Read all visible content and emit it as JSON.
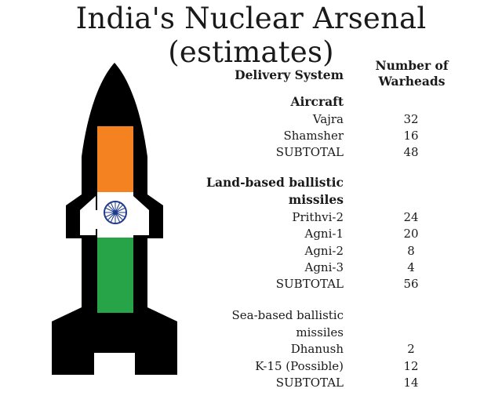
{
  "title": "India's Nuclear Arsenal (estimates)",
  "colors": {
    "rocket_outline": "#000000",
    "saffron": "#f58220",
    "white": "#ffffff",
    "green": "#27a348",
    "chakra": "#1f3a8a"
  },
  "chart_data": {
    "type": "table",
    "title": "India's Nuclear Arsenal (estimates)",
    "columns": [
      "Delivery System",
      "Number of Warheads"
    ],
    "sections": [
      {
        "name": "Aircraft",
        "rows": [
          {
            "system": "Vajra",
            "warheads": 32
          },
          {
            "system": "Shamsher",
            "warheads": 16
          }
        ],
        "subtotal_label": "SUBTOTAL",
        "subtotal": 48
      },
      {
        "name": "Land-based ballistic missiles",
        "rows": [
          {
            "system": "Prithvi-2",
            "warheads": 24
          },
          {
            "system": "Agni-1",
            "warheads": 20
          },
          {
            "system": "Agni-2",
            "warheads": 8
          },
          {
            "system": "Agni-3",
            "warheads": 4
          }
        ],
        "subtotal_label": "SUBTOTAL",
        "subtotal": 56
      },
      {
        "name": "Sea-based ballistic missiles",
        "rows": [
          {
            "system": "Dhanush",
            "warheads": 2
          },
          {
            "system": "K-15 (Possible)",
            "warheads": 12
          }
        ],
        "subtotal_label": "SUBTOTAL",
        "subtotal": 14
      }
    ]
  },
  "header": {
    "delivery_system": "Delivery System",
    "warheads_line1": "Number of",
    "warheads_line2": "Warheads"
  },
  "text": {
    "aircraft": "Aircraft",
    "land_line1": "Land-based ballistic",
    "land_line2": "missiles",
    "sea_line1": "Sea-based ballistic",
    "sea_line2": "missiles"
  }
}
